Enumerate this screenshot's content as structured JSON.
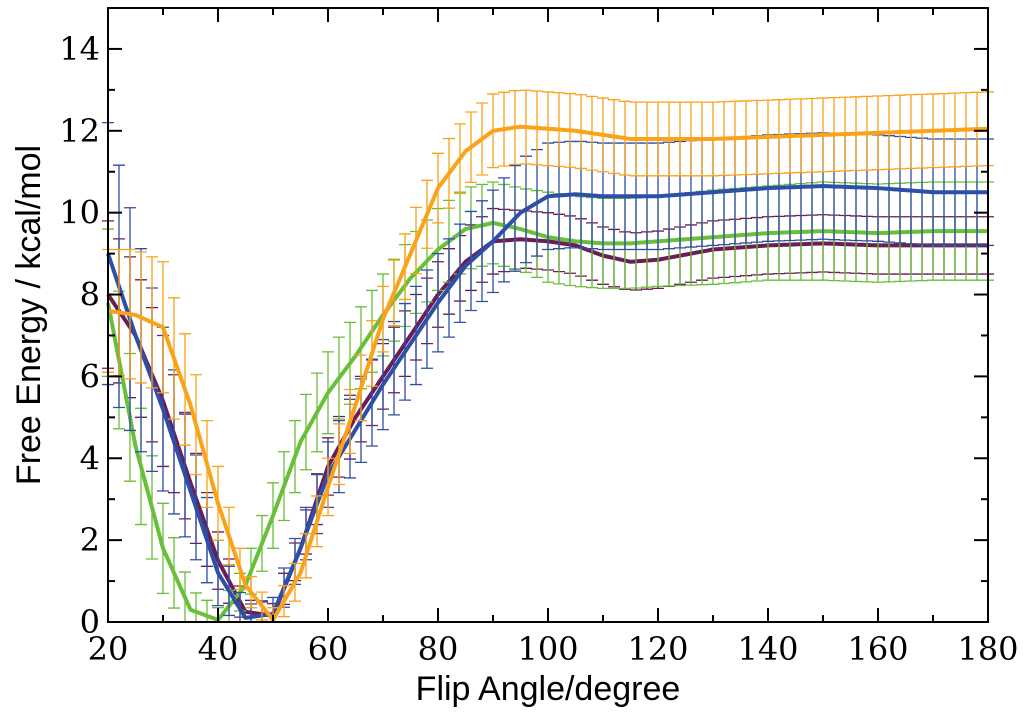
{
  "chart_data": {
    "type": "line",
    "title": "",
    "xlabel": "Flip Angle/degree",
    "ylabel": "Free Energy / kcal/mol",
    "xlim": [
      20,
      180
    ],
    "ylim": [
      0,
      15
    ],
    "xticks": [
      20,
      40,
      60,
      80,
      100,
      120,
      140,
      160,
      180
    ],
    "yticks": [
      0,
      2,
      4,
      6,
      8,
      10,
      12,
      14
    ],
    "grid": false,
    "legend": "none",
    "series": [
      {
        "name": "purple",
        "color": "#6b1d55",
        "x": [
          20,
          25,
          30,
          35,
          40,
          45,
          50,
          55,
          60,
          65,
          70,
          75,
          80,
          85,
          90,
          95,
          100,
          105,
          110,
          115,
          120,
          130,
          140,
          150,
          160,
          170,
          180
        ],
        "y": [
          8.0,
          7.0,
          5.4,
          3.4,
          1.5,
          0.25,
          0.15,
          1.8,
          3.8,
          5.0,
          6.0,
          7.0,
          8.0,
          8.8,
          9.3,
          9.35,
          9.3,
          9.2,
          8.95,
          8.8,
          8.85,
          9.1,
          9.2,
          9.25,
          9.2,
          9.2,
          9.2
        ],
        "error": [
          1.8,
          1.7,
          1.6,
          1.2,
          0.7,
          0.3,
          0.3,
          0.5,
          0.7,
          0.8,
          0.8,
          0.8,
          0.8,
          0.8,
          0.8,
          0.7,
          0.7,
          0.7,
          0.7,
          0.7,
          0.7,
          0.7,
          0.7,
          0.7,
          0.7,
          0.7,
          0.7
        ]
      },
      {
        "name": "green",
        "color": "#6abf3a",
        "x": [
          20,
          25,
          30,
          35,
          40,
          45,
          50,
          55,
          60,
          65,
          70,
          75,
          80,
          85,
          90,
          95,
          100,
          105,
          110,
          115,
          120,
          130,
          140,
          150,
          160,
          170,
          180
        ],
        "y": [
          7.8,
          4.3,
          1.8,
          0.3,
          0.05,
          0.9,
          2.6,
          4.4,
          5.6,
          6.5,
          7.5,
          8.4,
          9.1,
          9.6,
          9.75,
          9.6,
          9.4,
          9.3,
          9.25,
          9.25,
          9.3,
          9.4,
          9.5,
          9.55,
          9.5,
          9.55,
          9.55
        ],
        "error": [
          1.8,
          1.5,
          1.1,
          0.5,
          0.3,
          0.5,
          0.8,
          0.9,
          1.0,
          1.0,
          1.0,
          1.0,
          1.0,
          1.0,
          1.0,
          1.0,
          1.1,
          1.1,
          1.1,
          1.1,
          1.1,
          1.15,
          1.15,
          1.2,
          1.2,
          1.2,
          1.2
        ]
      },
      {
        "name": "blue",
        "color": "#2d4fa8",
        "x": [
          20,
          25,
          30,
          35,
          40,
          45,
          50,
          55,
          60,
          65,
          70,
          75,
          80,
          85,
          90,
          95,
          100,
          105,
          110,
          115,
          120,
          130,
          140,
          150,
          160,
          170,
          180
        ],
        "y": [
          9.0,
          7.0,
          5.2,
          3.2,
          1.2,
          0.1,
          0.2,
          1.8,
          3.6,
          4.7,
          5.8,
          6.8,
          7.8,
          8.7,
          9.3,
          10.0,
          10.4,
          10.45,
          10.4,
          10.4,
          10.4,
          10.5,
          10.6,
          10.65,
          10.6,
          10.5,
          10.5
        ],
        "error": [
          3.2,
          2.6,
          2.0,
          1.4,
          0.8,
          0.3,
          0.4,
          0.6,
          0.8,
          1.0,
          1.1,
          1.2,
          1.2,
          1.2,
          1.25,
          1.3,
          1.3,
          1.3,
          1.3,
          1.3,
          1.3,
          1.3,
          1.3,
          1.3,
          1.3,
          1.3,
          1.3
        ]
      },
      {
        "name": "orange",
        "color": "#f9a21a",
        "x": [
          20,
          25,
          30,
          35,
          40,
          45,
          50,
          55,
          60,
          65,
          70,
          75,
          80,
          85,
          90,
          95,
          100,
          105,
          110,
          115,
          120,
          130,
          140,
          150,
          160,
          170,
          180
        ],
        "y": [
          7.6,
          7.5,
          7.2,
          5.3,
          2.9,
          0.9,
          0.05,
          1.2,
          3.3,
          5.3,
          7.4,
          9.0,
          10.6,
          11.5,
          12.0,
          12.1,
          12.05,
          12.0,
          11.9,
          11.8,
          11.8,
          11.8,
          11.85,
          11.9,
          11.95,
          12.0,
          12.05
        ],
        "error": [
          1.5,
          1.6,
          1.6,
          1.3,
          0.9,
          0.4,
          0.3,
          0.5,
          0.7,
          0.8,
          0.8,
          0.8,
          0.85,
          0.85,
          0.9,
          0.9,
          0.9,
          0.9,
          0.9,
          0.9,
          0.9,
          0.9,
          0.9,
          0.9,
          0.9,
          0.9,
          0.9
        ]
      }
    ]
  }
}
